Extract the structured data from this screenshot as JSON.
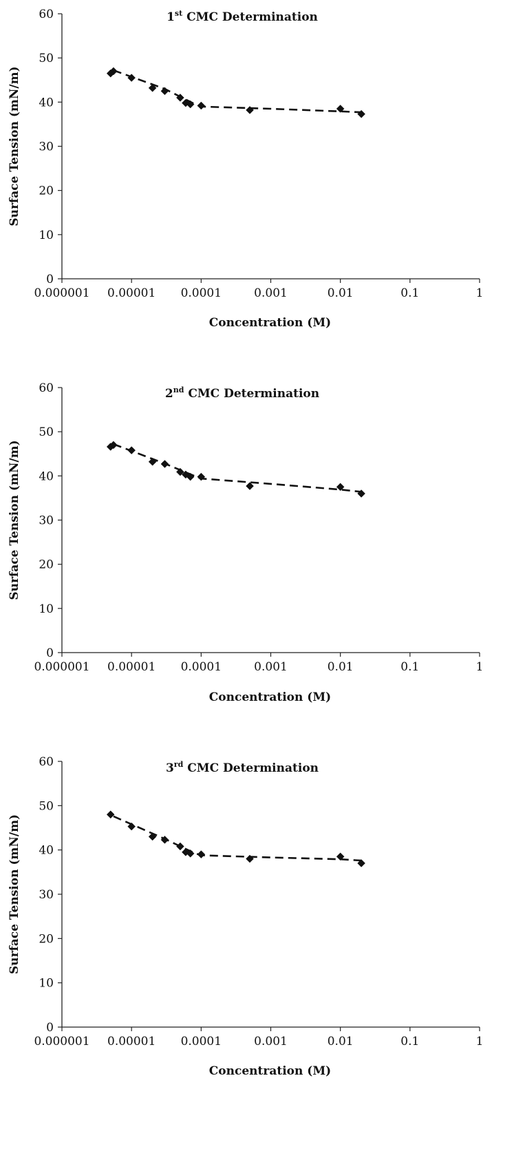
{
  "chart_data": [
    {
      "type": "scatter",
      "title_ordinal": "1",
      "title_suffix": "st",
      "title_rest": " CMC Determination",
      "xlabel": "Concentration (M)",
      "ylabel": "Surface Tension (mN/m)",
      "xscale": "log",
      "xlim": [
        1e-06,
        1
      ],
      "ylim": [
        0,
        60
      ],
      "xticks": [
        "0.000001",
        "0.00001",
        "0.0001",
        "0.001",
        "0.01",
        "0.1",
        "1"
      ],
      "yticks": [
        "0",
        "10",
        "20",
        "30",
        "40",
        "50",
        "60"
      ],
      "grid": false,
      "series": [
        {
          "marker": "diamond",
          "x": [
            5e-06,
            5.5e-06,
            1e-05,
            2e-05,
            3e-05,
            5e-05,
            6e-05,
            7e-05,
            0.0001,
            0.0005,
            0.01,
            0.02
          ],
          "y": [
            46.5,
            47.0,
            45.5,
            43.2,
            42.5,
            41.0,
            39.8,
            39.5,
            39.2,
            38.2,
            38.5,
            37.3
          ]
        }
      ],
      "trendline": {
        "style": "dashed",
        "x": [
          5.5e-06,
          3e-05,
          8e-05,
          0.0001,
          0.001,
          0.01,
          0.02
        ],
        "y": [
          47.2,
          43.0,
          39.6,
          39.0,
          38.5,
          37.9,
          37.7
        ]
      }
    },
    {
      "type": "scatter",
      "title_ordinal": "2",
      "title_suffix": "nd",
      "title_rest": " CMC Determination",
      "xlabel": "Concentration (M)",
      "ylabel": "Surface Tension (mN/m)",
      "xscale": "log",
      "xlim": [
        1e-06,
        1
      ],
      "ylim": [
        0,
        60
      ],
      "xticks": [
        "0.000001",
        "0.00001",
        "0.0001",
        "0.001",
        "0.01",
        "0.1",
        "1"
      ],
      "yticks": [
        "0",
        "10",
        "20",
        "30",
        "40",
        "50",
        "60"
      ],
      "grid": false,
      "series": [
        {
          "marker": "diamond",
          "x": [
            5e-06,
            5.5e-06,
            1e-05,
            2e-05,
            3e-05,
            5e-05,
            6e-05,
            7e-05,
            0.0001,
            0.0005,
            0.01,
            0.02
          ],
          "y": [
            46.6,
            47.0,
            45.8,
            43.2,
            42.7,
            40.9,
            40.3,
            39.8,
            39.8,
            37.7,
            37.5,
            36.0
          ]
        }
      ],
      "trendline": {
        "style": "dashed",
        "x": [
          5.5e-06,
          3e-05,
          8e-05,
          0.0001,
          0.001,
          0.01,
          0.02
        ],
        "y": [
          47.2,
          42.8,
          40.0,
          39.4,
          38.2,
          36.9,
          36.4
        ]
      }
    },
    {
      "type": "scatter",
      "title_ordinal": "3",
      "title_suffix": "rd",
      "title_rest": " CMC Determination",
      "xlabel": "Concentration (M)",
      "ylabel": "Surface Tension (mN/m)",
      "xscale": "log",
      "xlim": [
        1e-06,
        1
      ],
      "ylim": [
        0,
        60
      ],
      "xticks": [
        "0.000001",
        "0.00001",
        "0.0001",
        "0.001",
        "0.01",
        "0.1",
        "1"
      ],
      "yticks": [
        "0",
        "10",
        "20",
        "30",
        "40",
        "50",
        "60"
      ],
      "grid": false,
      "series": [
        {
          "marker": "diamond",
          "x": [
            5e-06,
            1e-05,
            2e-05,
            3e-05,
            5e-05,
            6e-05,
            7e-05,
            0.0001,
            0.0005,
            0.01,
            0.02
          ],
          "y": [
            48.0,
            45.3,
            43.0,
            42.3,
            40.8,
            39.5,
            39.2,
            39.0,
            38.0,
            38.5,
            37.0
          ]
        }
      ],
      "trendline": {
        "style": "dashed",
        "x": [
          5.5e-06,
          3e-05,
          8e-05,
          0.0001,
          0.001,
          0.01,
          0.02
        ],
        "y": [
          47.6,
          42.5,
          39.3,
          38.8,
          38.3,
          37.9,
          37.6
        ]
      }
    }
  ]
}
